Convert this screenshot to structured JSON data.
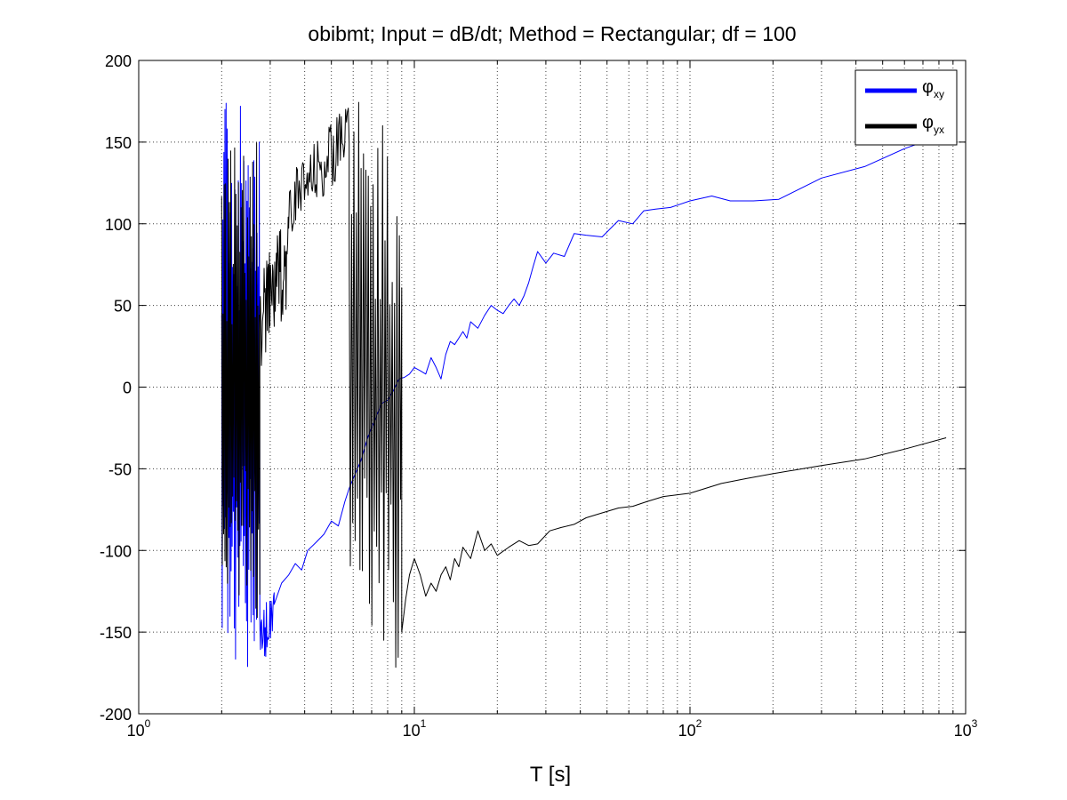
{
  "chart_data": {
    "type": "line",
    "title": "obibmt; Input = dB/dt; Method = Rectangular; df = 100",
    "xlabel": "T [s]",
    "ylabel": "",
    "xscale": "log",
    "xlim": [
      1,
      1000
    ],
    "ylim": [
      -200,
      200
    ],
    "xticks": [
      {
        "base": "10",
        "exp": "0"
      },
      {
        "base": "10",
        "exp": "1"
      },
      {
        "base": "10",
        "exp": "2"
      },
      {
        "base": "10",
        "exp": "3"
      }
    ],
    "yticks": [
      "200",
      "150",
      "100",
      "50",
      "0",
      "-50",
      "-100",
      "-150",
      "-200"
    ],
    "grid": true,
    "legend": {
      "position": "top-right",
      "entries": [
        {
          "symbol": "φ",
          "sub": "xy",
          "color": "#0000ff"
        },
        {
          "symbol": "φ",
          "sub": "yx",
          "color": "#000000"
        }
      ]
    },
    "series": [
      {
        "key": "phi_xy",
        "color": "#0000ff",
        "noisy_segments": [
          {
            "x_range": [
              2.0,
              2.75
            ],
            "mode": "wrap",
            "count": 70,
            "amplitude": 178
          },
          {
            "x_range": [
              2.75,
              3.1
            ],
            "mode": "trend",
            "count": 25,
            "y_from": -160,
            "y_to": -130,
            "jitter": 18
          }
        ],
        "points": [
          [
            3.1,
            -133
          ],
          [
            3.3,
            -120
          ],
          [
            3.5,
            -115
          ],
          [
            3.7,
            -108
          ],
          [
            3.9,
            -112
          ],
          [
            4.1,
            -100
          ],
          [
            4.4,
            -95
          ],
          [
            4.7,
            -90
          ],
          [
            5.0,
            -82
          ],
          [
            5.3,
            -85
          ],
          [
            5.6,
            -70
          ],
          [
            5.8,
            -62
          ],
          [
            6.0,
            -56
          ],
          [
            6.4,
            -45
          ],
          [
            6.8,
            -30
          ],
          [
            7.2,
            -20
          ],
          [
            7.6,
            -10
          ],
          [
            8.0,
            -8
          ],
          [
            8.4,
            -2
          ],
          [
            8.8,
            5
          ],
          [
            9.2,
            6
          ],
          [
            9.6,
            8
          ],
          [
            10.0,
            12
          ],
          [
            10.5,
            10
          ],
          [
            11.0,
            8
          ],
          [
            11.5,
            18
          ],
          [
            12.0,
            12
          ],
          [
            12.5,
            5
          ],
          [
            13.0,
            20
          ],
          [
            13.5,
            28
          ],
          [
            14.0,
            26
          ],
          [
            14.5,
            30
          ],
          [
            15.0,
            34
          ],
          [
            15.5,
            30
          ],
          [
            16.0,
            40
          ],
          [
            17.0,
            36
          ],
          [
            18.0,
            44
          ],
          [
            19.0,
            50
          ],
          [
            20.0,
            47
          ],
          [
            21.0,
            45
          ],
          [
            22.0,
            50
          ],
          [
            23.0,
            54
          ],
          [
            24.0,
            50
          ],
          [
            25.0,
            56
          ],
          [
            26.0,
            64
          ],
          [
            27.0,
            74
          ],
          [
            28.0,
            83
          ],
          [
            30.0,
            76
          ],
          [
            32.0,
            82
          ],
          [
            35.0,
            80
          ],
          [
            38.0,
            94
          ],
          [
            42.0,
            93
          ],
          [
            48.0,
            92
          ],
          [
            55.0,
            102
          ],
          [
            62.0,
            100
          ],
          [
            68.0,
            108
          ],
          [
            75.0,
            109
          ],
          [
            85.0,
            110
          ],
          [
            100.0,
            114
          ],
          [
            120.0,
            117
          ],
          [
            140.0,
            114
          ],
          [
            170.0,
            114
          ],
          [
            210.0,
            115
          ],
          [
            300.0,
            128
          ],
          [
            430.0,
            135
          ],
          [
            600.0,
            146
          ],
          [
            850.0,
            155
          ]
        ]
      },
      {
        "key": "phi_yx",
        "color": "#000000",
        "noisy_segments": [
          {
            "x_range": [
              2.0,
              2.75
            ],
            "mode": "wrap",
            "count": 60,
            "amplitude": 150
          },
          {
            "x_range": [
              2.75,
              3.5
            ],
            "mode": "trend",
            "count": 55,
            "y_from": 40,
            "y_to": 80,
            "jitter": 30
          },
          {
            "x_range": [
              3.5,
              5.8
            ],
            "mode": "trend",
            "count": 70,
            "y_from": 110,
            "y_to": 155,
            "jitter": 20
          },
          {
            "x_range": [
              5.8,
              9.0
            ],
            "mode": "wrap",
            "count": 45,
            "amplitude": 175
          }
        ],
        "points": [
          [
            9.0,
            -150
          ],
          [
            9.3,
            -130
          ],
          [
            9.6,
            -115
          ],
          [
            10.0,
            -105
          ],
          [
            10.5,
            -115
          ],
          [
            11.0,
            -128
          ],
          [
            11.5,
            -120
          ],
          [
            12.0,
            -125
          ],
          [
            12.5,
            -115
          ],
          [
            13.0,
            -110
          ],
          [
            13.5,
            -118
          ],
          [
            14.0,
            -105
          ],
          [
            14.5,
            -110
          ],
          [
            15.0,
            -98
          ],
          [
            16.0,
            -105
          ],
          [
            17.0,
            -88
          ],
          [
            18.0,
            -100
          ],
          [
            19.0,
            -96
          ],
          [
            20.0,
            -103
          ],
          [
            22.0,
            -98
          ],
          [
            24.0,
            -94
          ],
          [
            26.0,
            -97
          ],
          [
            28.0,
            -96
          ],
          [
            31.0,
            -88
          ],
          [
            34.0,
            -86
          ],
          [
            38.0,
            -84
          ],
          [
            42.0,
            -80
          ],
          [
            48.0,
            -77
          ],
          [
            55.0,
            -74
          ],
          [
            62.0,
            -73
          ],
          [
            70.0,
            -70
          ],
          [
            80.0,
            -67
          ],
          [
            100.0,
            -65
          ],
          [
            130.0,
            -59
          ],
          [
            160.0,
            -56
          ],
          [
            200.0,
            -53
          ],
          [
            300.0,
            -48
          ],
          [
            430.0,
            -44
          ],
          [
            600.0,
            -38
          ],
          [
            850.0,
            -31
          ]
        ]
      }
    ]
  }
}
